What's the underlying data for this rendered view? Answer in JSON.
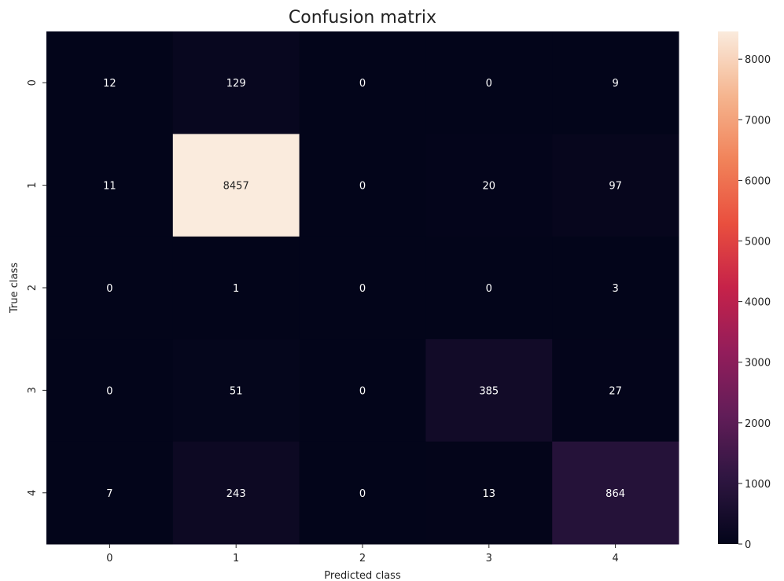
{
  "chart_data": {
    "type": "heatmap",
    "title": "Confusion matrix",
    "xlabel": "Predicted class",
    "ylabel": "True class",
    "x_categories": [
      "0",
      "1",
      "2",
      "3",
      "4"
    ],
    "y_categories": [
      "0",
      "1",
      "2",
      "3",
      "4"
    ],
    "values": [
      [
        12,
        129,
        0,
        0,
        9
      ],
      [
        11,
        8457,
        0,
        20,
        97
      ],
      [
        0,
        1,
        0,
        0,
        3
      ],
      [
        0,
        51,
        0,
        385,
        27
      ],
      [
        7,
        243,
        0,
        13,
        864
      ]
    ],
    "colorbar": {
      "min": 0,
      "max": 8457,
      "ticks": [
        0,
        1000,
        2000,
        3000,
        4000,
        5000,
        6000,
        7000,
        8000
      ],
      "colormap": "rocket",
      "colors": [
        "#03051a",
        "#2d1540",
        "#611d58",
        "#931d5b",
        "#c62249",
        "#e94f3e",
        "#f1835a",
        "#f5b58f",
        "#faebdd"
      ]
    },
    "annotation_dark_text": "#262626",
    "annotation_light_text": "#ffffff",
    "grid": false
  }
}
